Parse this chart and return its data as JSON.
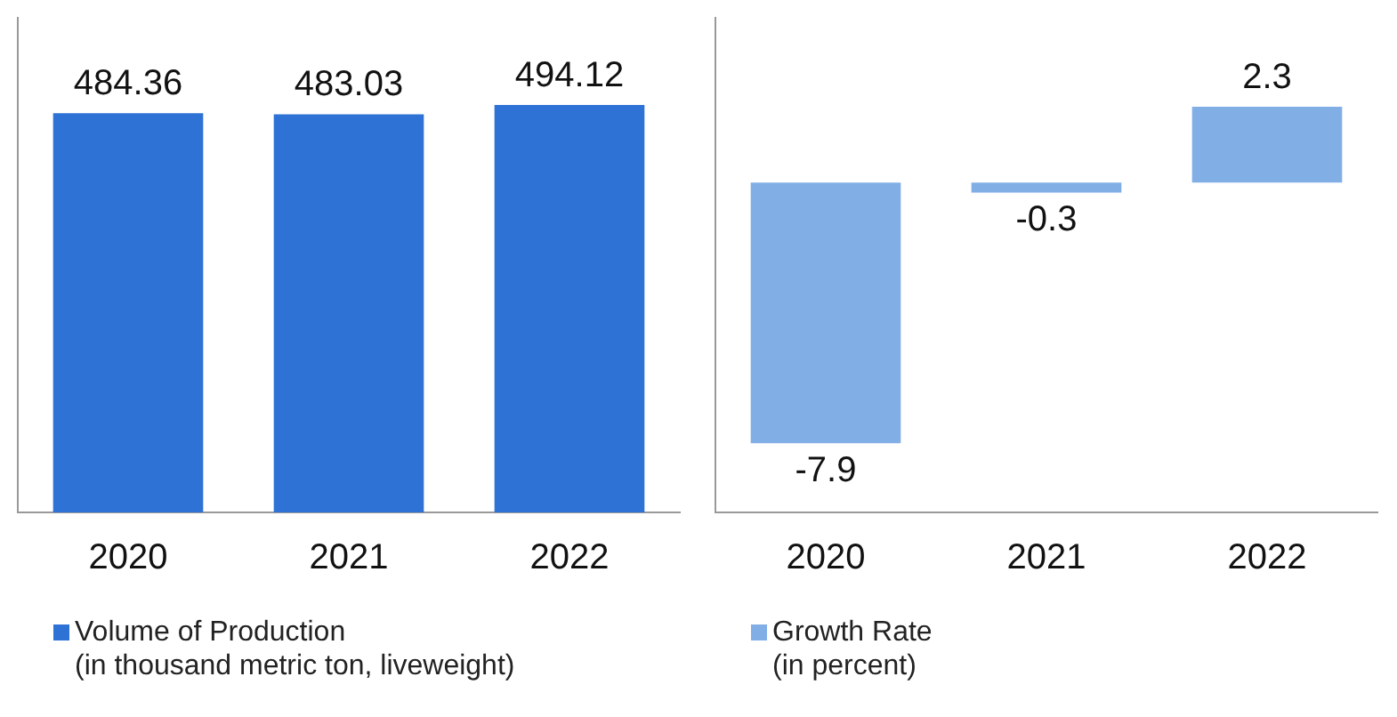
{
  "chart_data": [
    {
      "type": "bar",
      "categories": [
        "2020",
        "2021",
        "2022"
      ],
      "series": [
        {
          "name": "Volume of Production\n(in thousand metric ton, liveweight)",
          "color": "#2f72d6",
          "values": [
            484.36,
            483.03,
            494.12
          ]
        }
      ],
      "data_labels": true,
      "grid": false,
      "legend": "bottom",
      "tick_labels": "x"
    },
    {
      "type": "bar",
      "categories": [
        "2020",
        "2021",
        "2022"
      ],
      "series": [
        {
          "name": "Growth Rate\n(in percent)",
          "color": "#82aee6",
          "values": [
            -7.9,
            -0.3,
            2.3
          ]
        }
      ],
      "data_labels": true,
      "grid": false,
      "legend": "bottom",
      "tick_labels": "x"
    }
  ]
}
